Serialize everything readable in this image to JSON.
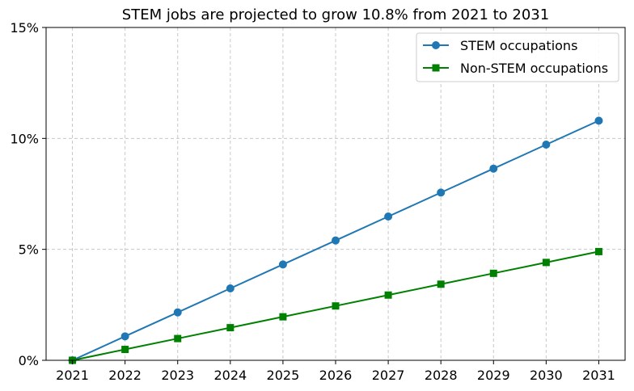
{
  "chart_data": {
    "type": "line",
    "title": "STEM jobs are projected to grow 10.8% from 2021 to 2031",
    "xlabel": "",
    "ylabel": "",
    "x": [
      2021,
      2022,
      2023,
      2024,
      2025,
      2026,
      2027,
      2028,
      2029,
      2030,
      2031
    ],
    "x_tick_labels": [
      "2021",
      "2022",
      "2023",
      "2024",
      "2025",
      "2026",
      "2027",
      "2028",
      "2029",
      "2030",
      "2031"
    ],
    "ylim": [
      0,
      15
    ],
    "y_ticks": [
      0,
      5,
      10,
      15
    ],
    "y_tick_labels": [
      "0%",
      "5%",
      "10%",
      "15%"
    ],
    "grid": true,
    "legend_position": "top-right",
    "series": [
      {
        "name": "STEM occupations",
        "color": "#1f77b4",
        "marker": "circle",
        "values": [
          0.0,
          1.08,
          2.16,
          3.24,
          4.32,
          5.4,
          6.48,
          7.56,
          8.64,
          9.72,
          10.8
        ]
      },
      {
        "name": "Non-STEM occupations",
        "color": "#008000",
        "marker": "square",
        "values": [
          0.0,
          0.49,
          0.98,
          1.47,
          1.96,
          2.45,
          2.94,
          3.43,
          3.92,
          4.41,
          4.9
        ]
      }
    ]
  }
}
